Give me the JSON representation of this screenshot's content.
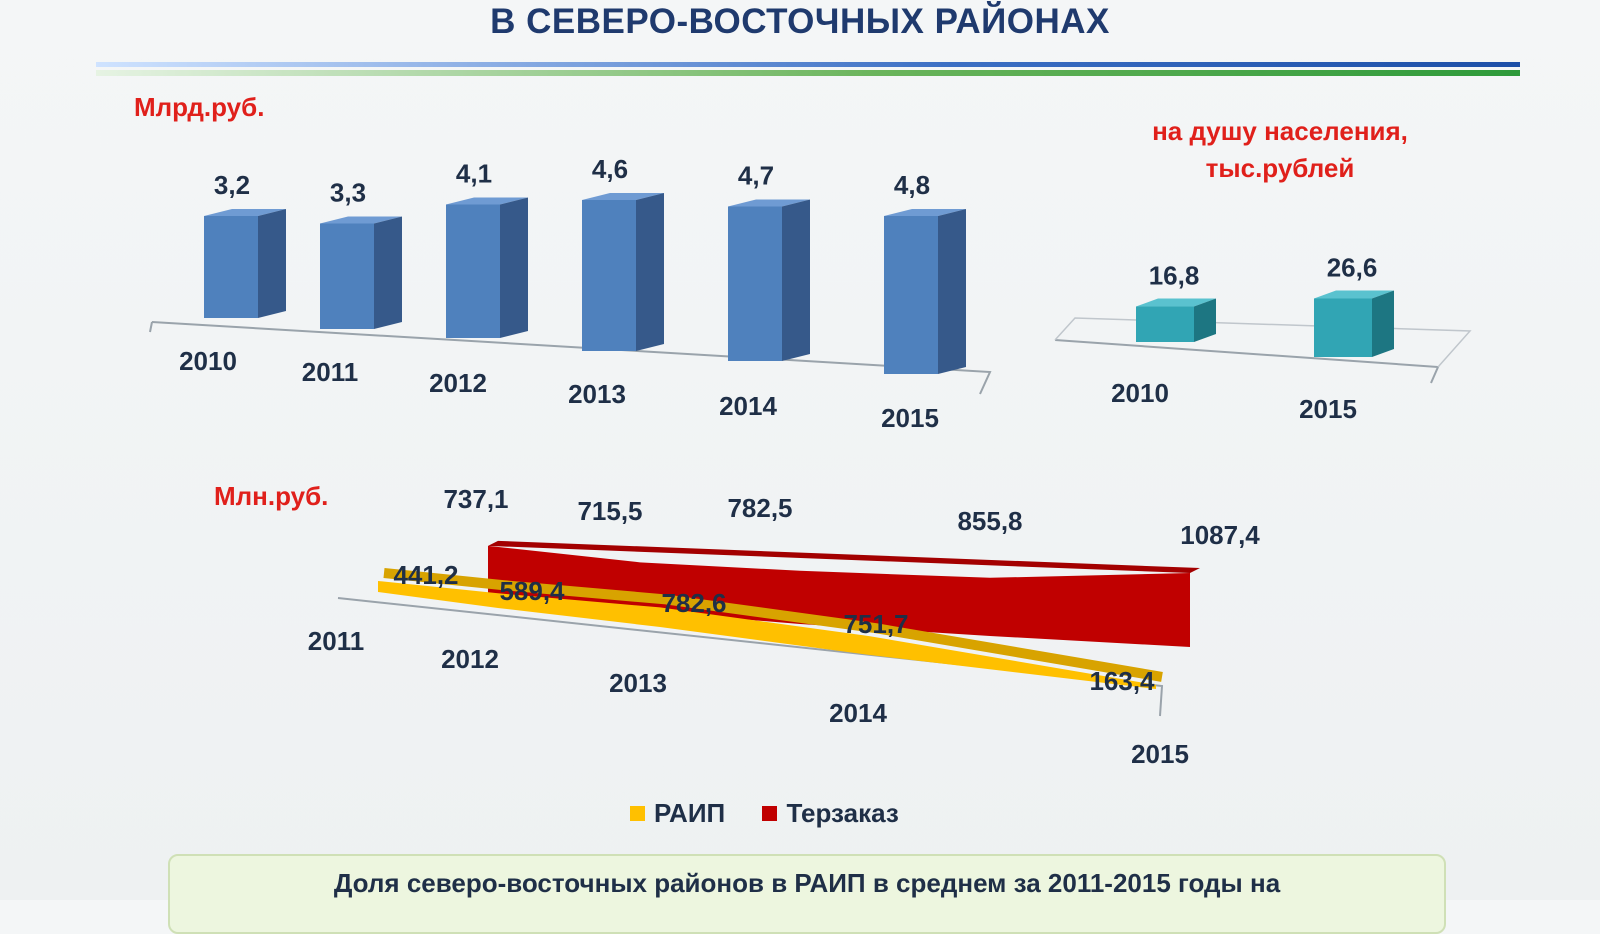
{
  "title": "В СЕВЕРО-ВОСТОЧНЫХ РАЙОНАХ",
  "colors": {
    "bar_front": "#4f81bd",
    "bar_side": "#36598a",
    "bar_top": "#6f9bd3",
    "teal_front": "#31a5b4",
    "teal_side": "#1d7682",
    "teal_top": "#5ac2cf",
    "raip": "#ffc000",
    "terzakaz": "#c00000",
    "unit_text": "#e0201b"
  },
  "chart_data": [
    {
      "type": "bar",
      "ylabel": "Млрд.руб.",
      "categories": [
        "2010",
        "2011",
        "2012",
        "2013",
        "2014",
        "2015"
      ],
      "values": [
        "3,2",
        "3,3",
        "4,1",
        "4,6",
        "4,7",
        "4,8"
      ]
    },
    {
      "type": "bar",
      "ylabel": "на душу  населения, тыс.рублей",
      "ylabel_lines": [
        "на душу  населения,",
        "тыс.рублей"
      ],
      "categories": [
        "2010",
        "2015"
      ],
      "values": [
        "16,8",
        "26,6"
      ]
    },
    {
      "type": "area",
      "ylabel": "Млн.руб.",
      "categories": [
        "2011",
        "2012",
        "2013",
        "2014",
        "2015"
      ],
      "series": [
        {
          "name": "РАИП",
          "values": [
            "441,2",
            "589,4",
            "782,6",
            "751,7",
            "163,4"
          ]
        },
        {
          "name": "Терзаказ",
          "values": [
            "737,1",
            "715,5",
            "782,5",
            "855,8",
            "1087,4"
          ]
        }
      ]
    }
  ],
  "note": "Доля северо-восточных районов в РАИП в среднем за 2011-2015 годы на"
}
